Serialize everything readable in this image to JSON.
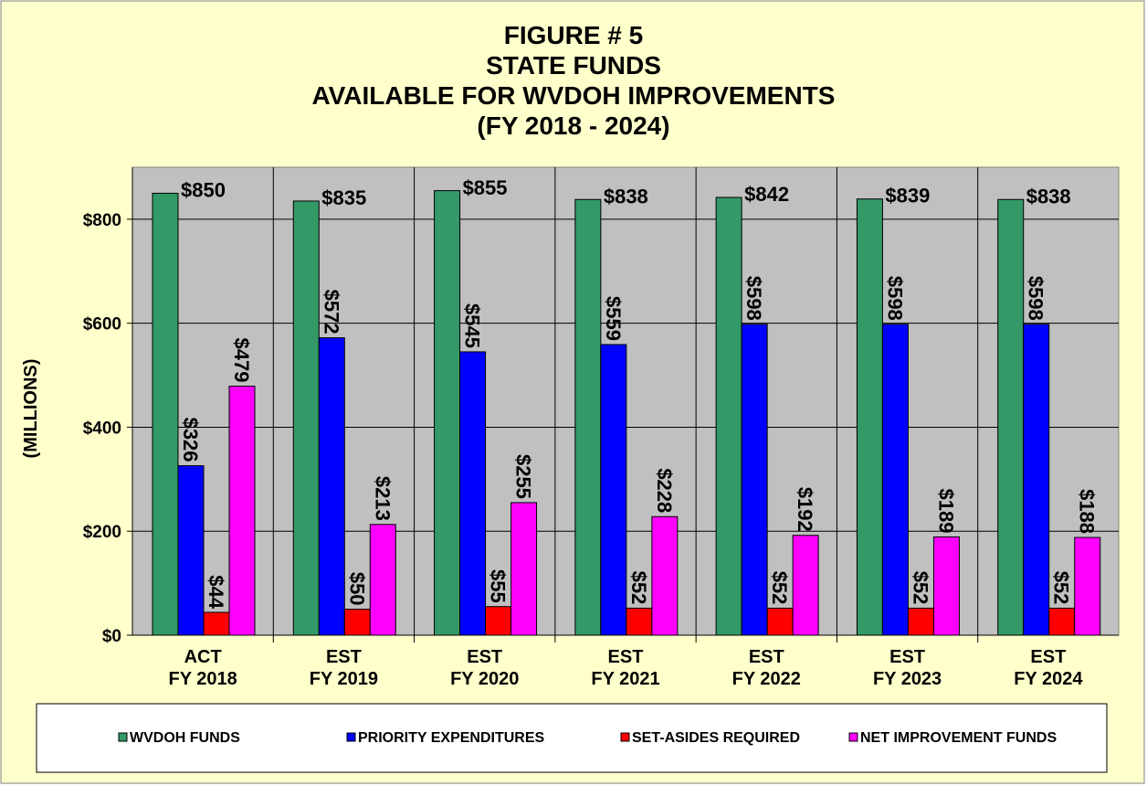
{
  "chart_data": {
    "type": "bar",
    "title": [
      "FIGURE # 5",
      "STATE FUNDS",
      "AVAILABLE FOR WVDOH IMPROVEMENTS",
      "(FY 2018 - 2024)"
    ],
    "ylabel": "(MILLIONS)",
    "categories": [
      [
        "ACT",
        "FY 2018"
      ],
      [
        "EST",
        "FY 2019"
      ],
      [
        "EST",
        "FY 2020"
      ],
      [
        "EST",
        "FY 2021"
      ],
      [
        "EST",
        "FY 2022"
      ],
      [
        "EST",
        "FY 2023"
      ],
      [
        "EST",
        "FY 2024"
      ]
    ],
    "series": [
      {
        "name": "WVDOH FUNDS",
        "color": "#339966",
        "values": [
          850,
          835,
          855,
          838,
          842,
          839,
          838
        ],
        "value_labels": [
          "$850",
          "$835",
          "$855",
          "$838",
          "$842",
          "$839",
          "$838"
        ]
      },
      {
        "name": "PRIORITY EXPENDITURES",
        "color": "#0000ff",
        "values": [
          326,
          572,
          545,
          559,
          598,
          598,
          598
        ],
        "value_labels": [
          "$326",
          "$572",
          "$545",
          "$559",
          "$598",
          "$598",
          "$598"
        ]
      },
      {
        "name": "SET-ASIDES REQUIRED",
        "color": "#ff0000",
        "values": [
          44,
          50,
          55,
          52,
          52,
          52,
          52
        ],
        "value_labels": [
          "$44",
          "$50",
          "$55",
          "$52",
          "$52",
          "$52",
          "$52"
        ]
      },
      {
        "name": "NET IMPROVEMENT FUNDS",
        "color": "#ff00ff",
        "values": [
          479,
          213,
          255,
          228,
          192,
          189,
          188
        ],
        "value_labels": [
          "$479",
          "$213",
          "$255",
          "$228",
          "$192",
          "$189",
          "$188"
        ]
      }
    ],
    "ylim": [
      0,
      900
    ],
    "yticks": [
      {
        "value": 0,
        "label": "$0"
      },
      {
        "value": 200,
        "label": "$200"
      },
      {
        "value": 400,
        "label": "$400"
      },
      {
        "value": 600,
        "label": "$600"
      },
      {
        "value": 800,
        "label": "$800"
      }
    ],
    "grid": true,
    "legend": "bottom"
  }
}
